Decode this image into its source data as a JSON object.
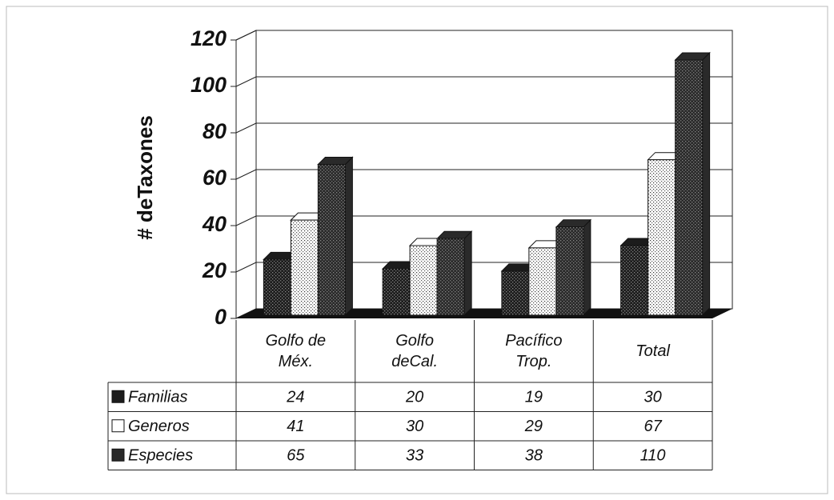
{
  "chart_data": {
    "type": "bar3d",
    "ylabel": "# deTaxones",
    "categories": [
      "Golfo de Méx.",
      "Golfo deCal.",
      "Pacífico Trop.",
      "Total"
    ],
    "series": [
      {
        "name": "Familias",
        "color": "#1c1c1c",
        "values": [
          24,
          20,
          19,
          30
        ]
      },
      {
        "name": "Generos",
        "color": "#ffffff",
        "values": [
          41,
          30,
          29,
          67
        ]
      },
      {
        "name": "Especies",
        "color": "#2a2a2a",
        "values": [
          65,
          33,
          38,
          110
        ]
      }
    ],
    "ylim": [
      0,
      120
    ],
    "yticks": [
      0,
      20,
      40,
      60,
      80,
      100,
      120
    ],
    "grid": true
  }
}
